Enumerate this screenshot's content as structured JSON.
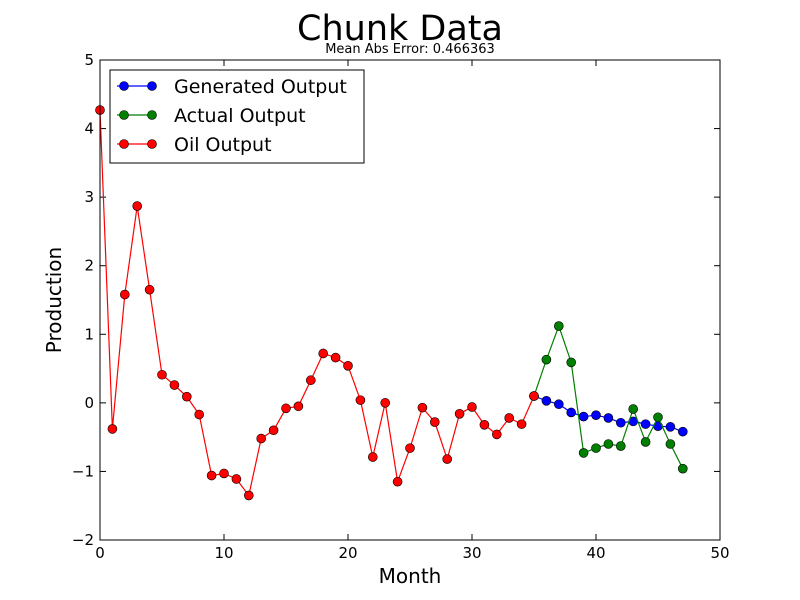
{
  "chart_data": {
    "type": "line",
    "title": "Chunk Data",
    "subtitle": "Mean Abs Error: 0.466363",
    "xlabel": "Month",
    "ylabel": "Production",
    "xlim": [
      0,
      50
    ],
    "ylim": [
      -2,
      5
    ],
    "xticks": [
      0,
      10,
      20,
      30,
      40,
      50
    ],
    "yticks": [
      -2,
      -1,
      0,
      1,
      2,
      3,
      4,
      5
    ],
    "grid": false,
    "legend_position": "top-left",
    "series": [
      {
        "name": "Generated Output",
        "color": "#0000ff",
        "x": [
          35,
          36,
          37,
          38,
          39,
          40,
          41,
          42,
          43,
          44,
          45,
          46,
          47
        ],
        "y": [
          0.1,
          0.03,
          -0.02,
          -0.14,
          -0.2,
          -0.18,
          -0.22,
          -0.29,
          -0.27,
          -0.31,
          -0.34,
          -0.35,
          -0.42
        ]
      },
      {
        "name": "Actual Output",
        "color": "#008000",
        "x": [
          35,
          36,
          37,
          38,
          39,
          40,
          41,
          42,
          43,
          44,
          45,
          46,
          47
        ],
        "y": [
          0.1,
          0.63,
          1.12,
          0.59,
          -0.73,
          -0.66,
          -0.6,
          -0.63,
          -0.09,
          -0.57,
          -0.21,
          -0.6,
          -0.96
        ]
      },
      {
        "name": "Oil Output",
        "color": "#ff0000",
        "x": [
          0,
          1,
          2,
          3,
          4,
          5,
          6,
          7,
          8,
          9,
          10,
          11,
          12,
          13,
          14,
          15,
          16,
          17,
          18,
          19,
          20,
          21,
          22,
          23,
          24,
          25,
          26,
          27,
          28,
          29,
          30,
          31,
          32,
          33,
          34,
          35
        ],
        "y": [
          4.27,
          -0.38,
          1.58,
          2.87,
          1.65,
          0.41,
          0.26,
          0.09,
          -0.17,
          -1.06,
          -1.03,
          -1.11,
          -1.35,
          -0.52,
          -0.4,
          -0.08,
          -0.05,
          0.33,
          0.72,
          0.66,
          0.54,
          0.04,
          -0.79,
          0.0,
          -1.15,
          -0.66,
          -0.07,
          -0.28,
          -0.82,
          -0.16,
          -0.06,
          -0.32,
          -0.46,
          -0.22,
          -0.31,
          0.1
        ]
      }
    ]
  }
}
